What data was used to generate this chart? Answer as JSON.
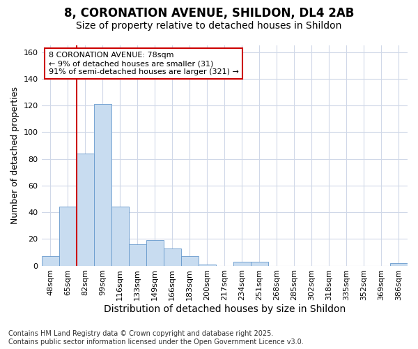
{
  "title1": "8, CORONATION AVENUE, SHILDON, DL4 2AB",
  "title2": "Size of property relative to detached houses in Shildon",
  "xlabel": "Distribution of detached houses by size in Shildon",
  "ylabel": "Number of detached properties",
  "categories": [
    "48sqm",
    "65sqm",
    "82sqm",
    "99sqm",
    "116sqm",
    "133sqm",
    "149sqm",
    "166sqm",
    "183sqm",
    "200sqm",
    "217sqm",
    "234sqm",
    "251sqm",
    "268sqm",
    "285sqm",
    "302sqm",
    "318sqm",
    "335sqm",
    "352sqm",
    "369sqm",
    "386sqm"
  ],
  "values": [
    7,
    44,
    84,
    121,
    44,
    16,
    19,
    13,
    7,
    1,
    0,
    3,
    3,
    0,
    0,
    0,
    0,
    0,
    0,
    0,
    2
  ],
  "bar_color": "#c8dcf0",
  "bar_edge_color": "#6699cc",
  "annotation_box_text": "8 CORONATION AVENUE: 78sqm\n← 9% of detached houses are smaller (31)\n91% of semi-detached houses are larger (321) →",
  "annotation_box_edge_color": "#cc0000",
  "annotation_box_face_color": "#ffffff",
  "vline_x_index": 1.5,
  "vline_color": "#cc0000",
  "ylim": [
    0,
    165
  ],
  "yticks": [
    0,
    20,
    40,
    60,
    80,
    100,
    120,
    140,
    160
  ],
  "background_color": "#ffffff",
  "plot_bg_color": "#ffffff",
  "grid_color": "#d0d8e8",
  "footer_line1": "Contains HM Land Registry data © Crown copyright and database right 2025.",
  "footer_line2": "Contains public sector information licensed under the Open Government Licence v3.0.",
  "title1_fontsize": 12,
  "title2_fontsize": 10,
  "xlabel_fontsize": 10,
  "ylabel_fontsize": 9,
  "tick_fontsize": 8,
  "annotation_fontsize": 8,
  "footer_fontsize": 7
}
